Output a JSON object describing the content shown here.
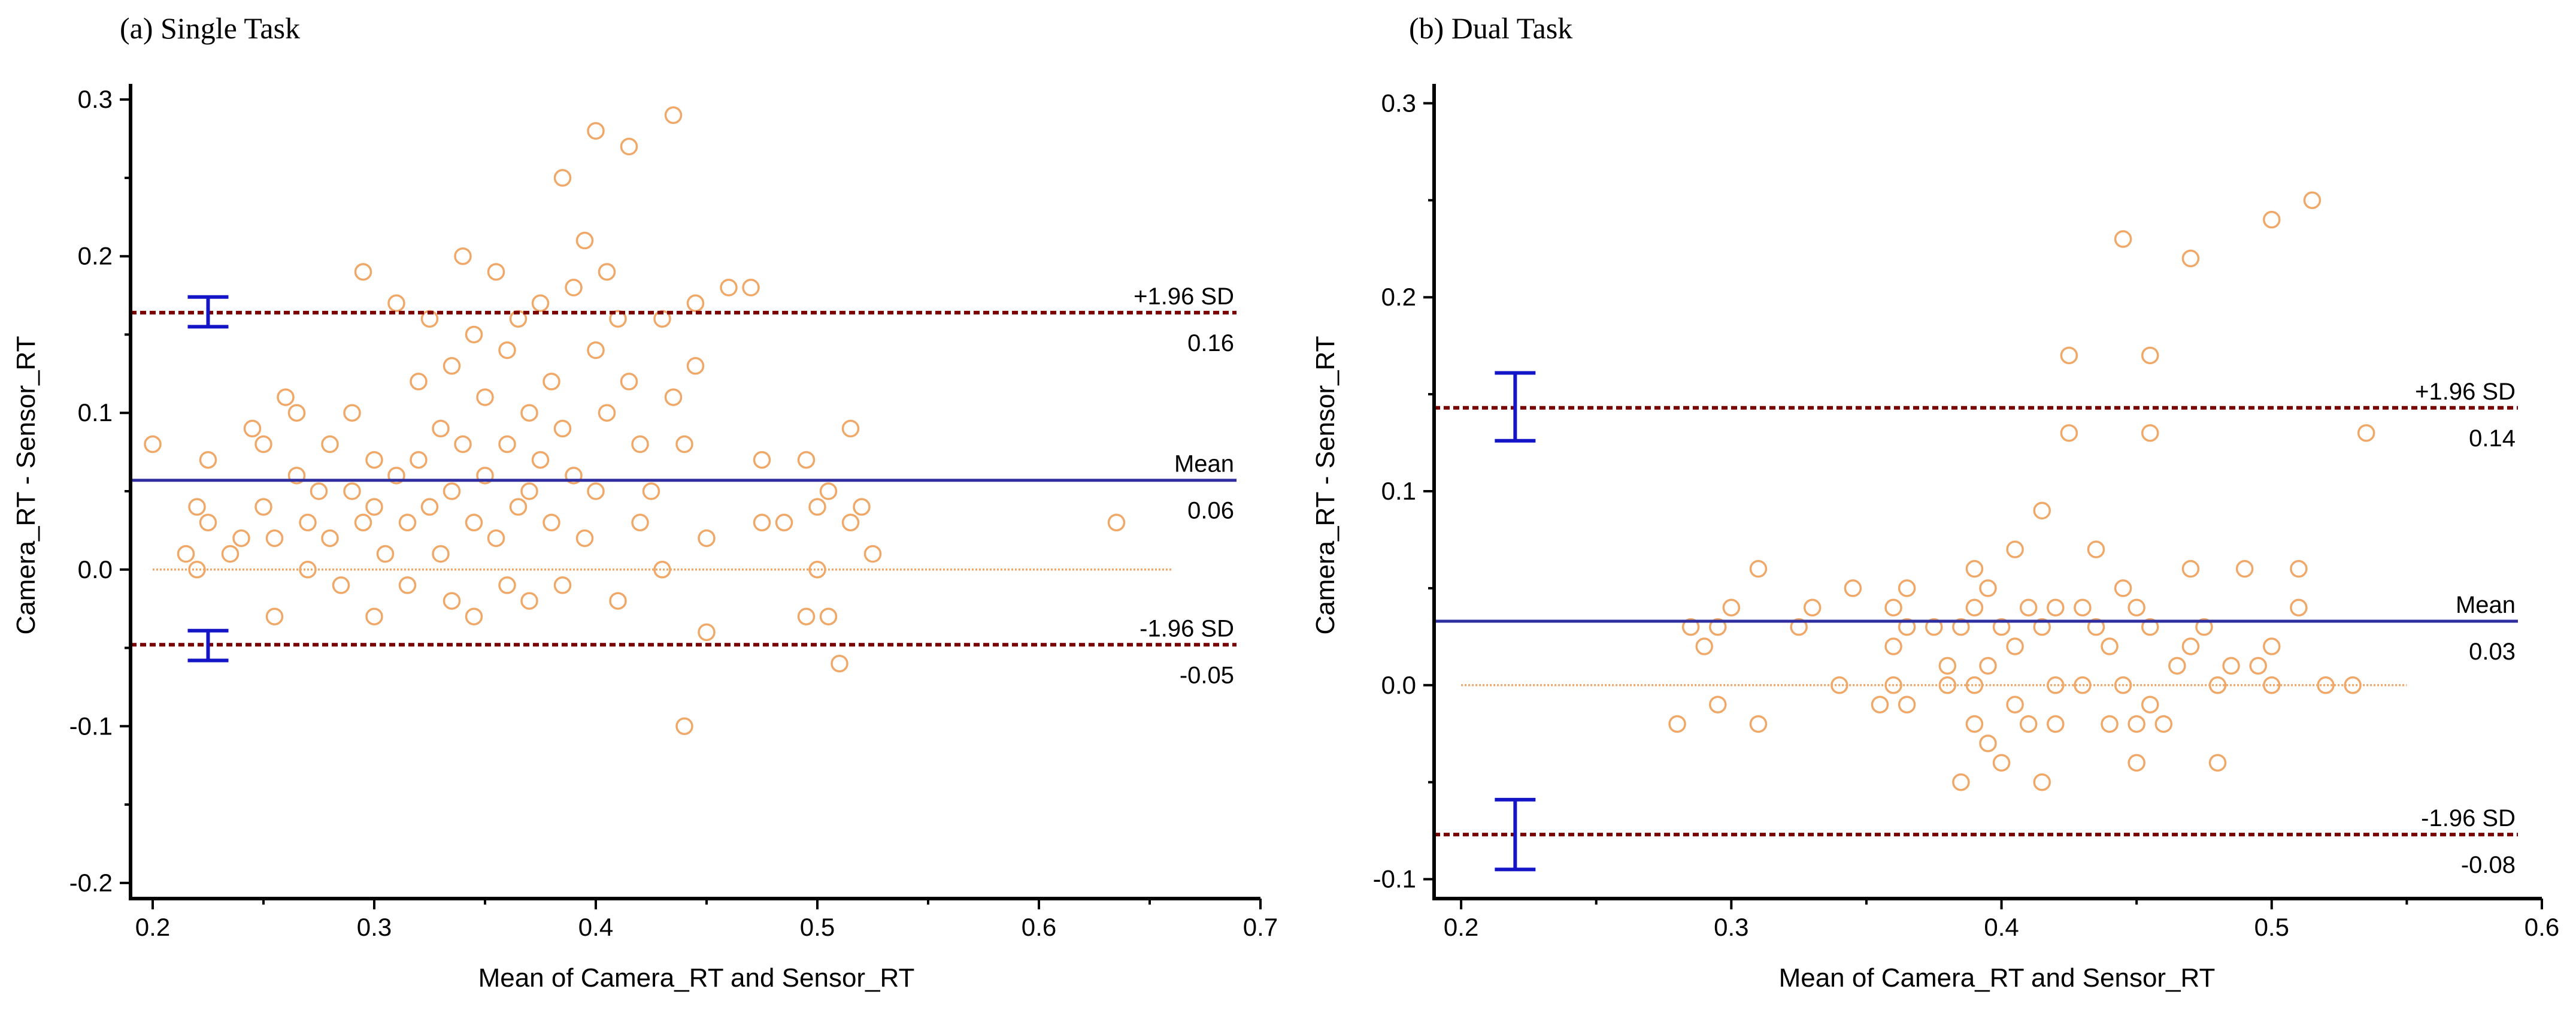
{
  "chart_data": [
    {
      "type": "scatter",
      "title": "(a) Single Task",
      "xlabel": "Mean of Camera_RT and Sensor_RT",
      "ylabel": "Camera_RT - Sensor_RT",
      "xlim": [
        0.19,
        0.7
      ],
      "ylim": [
        -0.21,
        0.31
      ],
      "xticks": [
        0.2,
        0.3,
        0.4,
        0.5,
        0.6,
        0.7
      ],
      "xtick_labels": [
        "0.2",
        "0.3",
        "0.4",
        "0.5",
        "0.6",
        "0.7"
      ],
      "yticks": [
        -0.2,
        -0.1,
        0.0,
        0.1,
        0.2,
        0.3
      ],
      "ytick_labels": [
        "-0.2",
        "-0.1",
        "0.0",
        "0.1",
        "0.2",
        "0.3"
      ],
      "zero_line_xrange": [
        0.2,
        0.66
      ],
      "mean": {
        "value": 0.057,
        "name": "Mean",
        "label": "0.06"
      },
      "upper_loa": {
        "value": 0.164,
        "name": "+1.96 SD",
        "label": "0.16",
        "ci": [
          0.155,
          0.174
        ]
      },
      "lower_loa": {
        "value": -0.048,
        "name": "-1.96 SD",
        "label": "-0.05",
        "ci": [
          -0.058,
          -0.039
        ]
      },
      "ci_x": 0.225,
      "points": [
        [
          0.2,
          0.08
        ],
        [
          0.215,
          0.01
        ],
        [
          0.22,
          0.04
        ],
        [
          0.22,
          0.0
        ],
        [
          0.225,
          0.07
        ],
        [
          0.225,
          0.03
        ],
        [
          0.235,
          0.01
        ],
        [
          0.24,
          0.02
        ],
        [
          0.245,
          0.09
        ],
        [
          0.25,
          0.08
        ],
        [
          0.25,
          0.04
        ],
        [
          0.255,
          0.02
        ],
        [
          0.255,
          -0.03
        ],
        [
          0.26,
          0.11
        ],
        [
          0.265,
          0.1
        ],
        [
          0.265,
          0.06
        ],
        [
          0.27,
          0.03
        ],
        [
          0.27,
          0.0
        ],
        [
          0.275,
          0.05
        ],
        [
          0.28,
          0.08
        ],
        [
          0.28,
          0.02
        ],
        [
          0.285,
          -0.01
        ],
        [
          0.29,
          0.1
        ],
        [
          0.29,
          0.05
        ],
        [
          0.295,
          0.03
        ],
        [
          0.295,
          0.19
        ],
        [
          0.3,
          0.07
        ],
        [
          0.3,
          0.04
        ],
        [
          0.3,
          -0.03
        ],
        [
          0.305,
          0.01
        ],
        [
          0.31,
          0.17
        ],
        [
          0.31,
          0.06
        ],
        [
          0.315,
          0.03
        ],
        [
          0.315,
          -0.01
        ],
        [
          0.32,
          0.12
        ],
        [
          0.32,
          0.07
        ],
        [
          0.325,
          0.16
        ],
        [
          0.325,
          0.04
        ],
        [
          0.33,
          0.09
        ],
        [
          0.33,
          0.01
        ],
        [
          0.335,
          0.13
        ],
        [
          0.335,
          0.05
        ],
        [
          0.335,
          -0.02
        ],
        [
          0.34,
          0.2
        ],
        [
          0.34,
          0.08
        ],
        [
          0.345,
          0.15
        ],
        [
          0.345,
          0.03
        ],
        [
          0.345,
          -0.03
        ],
        [
          0.35,
          0.11
        ],
        [
          0.35,
          0.06
        ],
        [
          0.355,
          0.19
        ],
        [
          0.355,
          0.02
        ],
        [
          0.36,
          0.14
        ],
        [
          0.36,
          0.08
        ],
        [
          0.36,
          -0.01
        ],
        [
          0.365,
          0.16
        ],
        [
          0.365,
          0.04
        ],
        [
          0.37,
          0.1
        ],
        [
          0.37,
          0.05
        ],
        [
          0.37,
          -0.02
        ],
        [
          0.375,
          0.17
        ],
        [
          0.375,
          0.07
        ],
        [
          0.38,
          0.12
        ],
        [
          0.38,
          0.03
        ],
        [
          0.385,
          0.25
        ],
        [
          0.385,
          0.09
        ],
        [
          0.385,
          -0.01
        ],
        [
          0.39,
          0.18
        ],
        [
          0.39,
          0.06
        ],
        [
          0.395,
          0.21
        ],
        [
          0.395,
          0.02
        ],
        [
          0.4,
          0.28
        ],
        [
          0.4,
          0.14
        ],
        [
          0.4,
          0.05
        ],
        [
          0.405,
          0.19
        ],
        [
          0.405,
          0.1
        ],
        [
          0.41,
          0.16
        ],
        [
          0.41,
          -0.02
        ],
        [
          0.415,
          0.27
        ],
        [
          0.415,
          0.12
        ],
        [
          0.42,
          0.08
        ],
        [
          0.42,
          0.03
        ],
        [
          0.425,
          0.05
        ],
        [
          0.43,
          0.16
        ],
        [
          0.43,
          0.0
        ],
        [
          0.435,
          0.29
        ],
        [
          0.435,
          0.11
        ],
        [
          0.44,
          0.08
        ],
        [
          0.44,
          -0.1
        ],
        [
          0.445,
          0.17
        ],
        [
          0.445,
          0.13
        ],
        [
          0.45,
          0.02
        ],
        [
          0.45,
          -0.04
        ],
        [
          0.46,
          0.18
        ],
        [
          0.47,
          0.18
        ],
        [
          0.475,
          0.07
        ],
        [
          0.475,
          0.03
        ],
        [
          0.485,
          0.03
        ],
        [
          0.495,
          0.07
        ],
        [
          0.495,
          -0.03
        ],
        [
          0.5,
          0.04
        ],
        [
          0.5,
          0.0
        ],
        [
          0.505,
          0.05
        ],
        [
          0.505,
          -0.03
        ],
        [
          0.51,
          -0.06
        ],
        [
          0.515,
          0.09
        ],
        [
          0.515,
          0.03
        ],
        [
          0.52,
          0.04
        ],
        [
          0.525,
          0.01
        ],
        [
          0.635,
          0.03
        ]
      ]
    },
    {
      "type": "scatter",
      "title": "(b) Dual Task",
      "xlabel": "Mean of Camera_RT and Sensor_RT",
      "ylabel": "Camera_RT - Sensor_RT",
      "xlim": [
        0.19,
        0.6
      ],
      "ylim": [
        -0.11,
        0.31
      ],
      "xticks": [
        0.2,
        0.3,
        0.4,
        0.5,
        0.6
      ],
      "xtick_labels": [
        "0.2",
        "0.3",
        "0.4",
        "0.5",
        "0.6"
      ],
      "yticks": [
        -0.1,
        0.0,
        0.1,
        0.2,
        0.3
      ],
      "ytick_labels": [
        "-0.1",
        "0.0",
        "0.1",
        "0.2",
        "0.3"
      ],
      "zero_line_xrange": [
        0.2,
        0.55
      ],
      "mean": {
        "value": 0.033,
        "name": "Mean",
        "label": "0.03"
      },
      "upper_loa": {
        "value": 0.143,
        "name": "+1.96 SD",
        "label": "0.14",
        "ci": [
          0.126,
          0.161
        ]
      },
      "lower_loa": {
        "value": -0.077,
        "name": "-1.96 SD",
        "label": "-0.08",
        "ci": [
          -0.095,
          -0.059
        ]
      },
      "ci_x": 0.22,
      "points": [
        [
          0.28,
          -0.02
        ],
        [
          0.285,
          0.03
        ],
        [
          0.29,
          0.02
        ],
        [
          0.295,
          0.03
        ],
        [
          0.295,
          -0.01
        ],
        [
          0.3,
          0.04
        ],
        [
          0.31,
          0.06
        ],
        [
          0.31,
          -0.02
        ],
        [
          0.325,
          0.03
        ],
        [
          0.33,
          0.04
        ],
        [
          0.34,
          0.0
        ],
        [
          0.345,
          0.05
        ],
        [
          0.355,
          -0.01
        ],
        [
          0.36,
          0.04
        ],
        [
          0.36,
          0.02
        ],
        [
          0.36,
          0.0
        ],
        [
          0.365,
          0.05
        ],
        [
          0.365,
          0.03
        ],
        [
          0.365,
          -0.01
        ],
        [
          0.375,
          0.03
        ],
        [
          0.38,
          0.01
        ],
        [
          0.38,
          0.0
        ],
        [
          0.385,
          0.03
        ],
        [
          0.385,
          -0.05
        ],
        [
          0.39,
          0.06
        ],
        [
          0.39,
          0.04
        ],
        [
          0.39,
          0.0
        ],
        [
          0.39,
          -0.02
        ],
        [
          0.395,
          0.05
        ],
        [
          0.395,
          0.01
        ],
        [
          0.395,
          -0.03
        ],
        [
          0.4,
          0.03
        ],
        [
          0.4,
          -0.04
        ],
        [
          0.405,
          0.07
        ],
        [
          0.405,
          0.02
        ],
        [
          0.405,
          -0.01
        ],
        [
          0.41,
          0.04
        ],
        [
          0.41,
          -0.02
        ],
        [
          0.415,
          0.09
        ],
        [
          0.415,
          0.03
        ],
        [
          0.415,
          -0.05
        ],
        [
          0.42,
          0.04
        ],
        [
          0.42,
          0.0
        ],
        [
          0.42,
          -0.02
        ],
        [
          0.425,
          0.17
        ],
        [
          0.425,
          0.13
        ],
        [
          0.43,
          0.04
        ],
        [
          0.43,
          0.0
        ],
        [
          0.435,
          0.07
        ],
        [
          0.435,
          0.03
        ],
        [
          0.44,
          0.02
        ],
        [
          0.44,
          -0.02
        ],
        [
          0.445,
          0.23
        ],
        [
          0.445,
          0.05
        ],
        [
          0.445,
          0.0
        ],
        [
          0.45,
          0.04
        ],
        [
          0.45,
          -0.02
        ],
        [
          0.45,
          -0.04
        ],
        [
          0.455,
          0.17
        ],
        [
          0.455,
          0.13
        ],
        [
          0.455,
          0.03
        ],
        [
          0.455,
          -0.01
        ],
        [
          0.46,
          -0.02
        ],
        [
          0.465,
          0.01
        ],
        [
          0.47,
          0.22
        ],
        [
          0.47,
          0.06
        ],
        [
          0.47,
          0.02
        ],
        [
          0.475,
          0.03
        ],
        [
          0.48,
          0.0
        ],
        [
          0.48,
          -0.04
        ],
        [
          0.485,
          0.01
        ],
        [
          0.49,
          0.06
        ],
        [
          0.495,
          0.01
        ],
        [
          0.5,
          0.24
        ],
        [
          0.5,
          0.02
        ],
        [
          0.5,
          0.0
        ],
        [
          0.51,
          0.06
        ],
        [
          0.51,
          0.04
        ],
        [
          0.515,
          0.25
        ],
        [
          0.52,
          0.0
        ],
        [
          0.53,
          0.0
        ],
        [
          0.535,
          0.13
        ]
      ]
    }
  ]
}
